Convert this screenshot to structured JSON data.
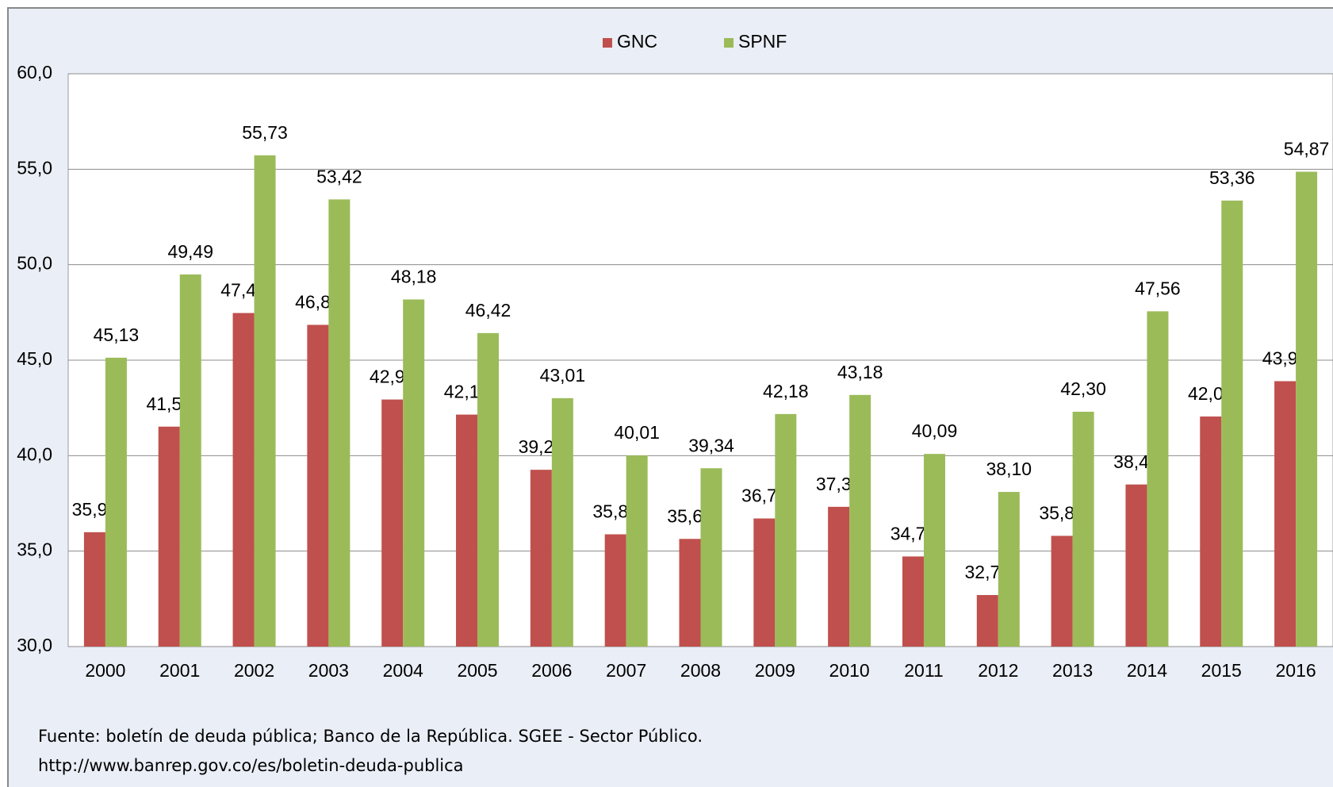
{
  "chart_data": {
    "type": "bar",
    "categories": [
      "2000",
      "2001",
      "2002",
      "2003",
      "2004",
      "2005",
      "2006",
      "2007",
      "2008",
      "2009",
      "2010",
      "2011",
      "2012",
      "2013",
      "2014",
      "2015",
      "2016"
    ],
    "series": [
      {
        "name": "GNC",
        "color": "#c0504d",
        "values": [
          35.99,
          41.52,
          47.47,
          46.85,
          42.94,
          42.15,
          39.26,
          35.88,
          35.64,
          36.71,
          37.32,
          34.72,
          32.7,
          35.8,
          38.49,
          42.05,
          43.9
        ],
        "value_labels": [
          "35,99",
          "41,52",
          "47,47",
          "46,85",
          "42,94",
          "42,15",
          "39,26",
          "35,88",
          "35,64",
          "36,71",
          "37,32",
          "34,72",
          "32,70",
          "35,80",
          "38,49",
          "42,05",
          "43,90"
        ]
      },
      {
        "name": "SPNF",
        "color": "#9bbb59",
        "values": [
          45.13,
          49.49,
          55.73,
          53.42,
          48.18,
          46.42,
          43.01,
          40.01,
          39.34,
          42.18,
          43.18,
          40.09,
          38.1,
          42.3,
          47.56,
          53.36,
          54.87
        ],
        "value_labels": [
          "45,13",
          "49,49",
          "55,73",
          "53,42",
          "48,18",
          "46,42",
          "43,01",
          "40,01",
          "39,34",
          "42,18",
          "43,18",
          "40,09",
          "38,10",
          "42,30",
          "47,56",
          "53,36",
          "54,87"
        ]
      }
    ],
    "ylim": [
      30,
      60
    ],
    "yticks": [
      {
        "value": 30,
        "label": "30,0"
      },
      {
        "value": 35,
        "label": "35,0"
      },
      {
        "value": 40,
        "label": "40,0"
      },
      {
        "value": 45,
        "label": "45,0"
      },
      {
        "value": 50,
        "label": "50,0"
      },
      {
        "value": 55,
        "label": "55,0"
      },
      {
        "value": 60,
        "label": "60,0"
      }
    ],
    "grid": true,
    "legend": "top",
    "notes": [
      "Fuente: boletín de deuda pública; Banco de la República. SGEE - Sector Público.",
      "http://www.banrep.gov.co/es/boletin-deuda-publica"
    ]
  }
}
